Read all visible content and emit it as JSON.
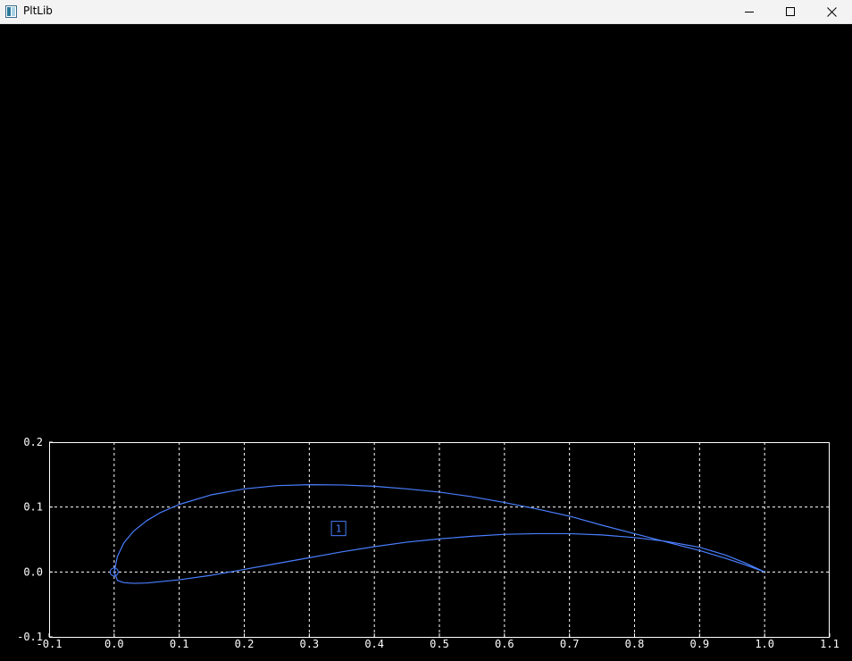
{
  "window": {
    "title": "PltLib",
    "icons": {
      "app": "plot-window-icon",
      "minimize": "minimize-icon",
      "maximize": "maximize-icon",
      "close": "close-icon"
    }
  },
  "colors": {
    "background": "#000000",
    "titlebar": "#f3f3f3",
    "axes": "#ffffff",
    "grid": "#ffffff",
    "curve": "#4a7fff",
    "marker": "#4a7fff"
  },
  "chart_data": {
    "type": "line",
    "title": "",
    "xlabel": "",
    "ylabel": "",
    "xlim": [
      -0.1,
      1.1
    ],
    "ylim": [
      -0.1,
      0.2
    ],
    "xticks": [
      -0.1,
      0.0,
      0.1,
      0.2,
      0.3,
      0.4,
      0.5,
      0.6,
      0.7,
      0.8,
      0.9,
      1.0,
      1.1
    ],
    "yticks": [
      -0.1,
      0.0,
      0.1,
      0.2
    ],
    "xtick_labels": [
      "-0.1",
      "0.0",
      "0.1",
      "0.2",
      "0.3",
      "0.4",
      "0.5",
      "0.6",
      "0.7",
      "0.8",
      "0.9",
      "1.0",
      "1.1"
    ],
    "ytick_labels": [
      "-0.1",
      "0.0",
      "0.1",
      "0.2"
    ],
    "grid": true,
    "grid_style": "dashed",
    "series": [
      {
        "points": [
          [
            1.0,
            0.0
          ],
          [
            0.97,
            0.011
          ],
          [
            0.94,
            0.021
          ],
          [
            0.9,
            0.033
          ],
          [
            0.85,
            0.046
          ],
          [
            0.8,
            0.059
          ],
          [
            0.75,
            0.072
          ],
          [
            0.7,
            0.086
          ],
          [
            0.65,
            0.097
          ],
          [
            0.6,
            0.107
          ],
          [
            0.55,
            0.116
          ],
          [
            0.5,
            0.123
          ],
          [
            0.45,
            0.128
          ],
          [
            0.4,
            0.132
          ],
          [
            0.35,
            0.134
          ],
          [
            0.3,
            0.1345
          ],
          [
            0.25,
            0.133
          ],
          [
            0.2,
            0.128
          ],
          [
            0.15,
            0.119
          ],
          [
            0.1,
            0.104
          ],
          [
            0.07,
            0.091
          ],
          [
            0.05,
            0.079
          ],
          [
            0.03,
            0.063
          ],
          [
            0.015,
            0.045
          ],
          [
            0.005,
            0.024
          ],
          [
            0.0,
            0.0
          ],
          [
            0.005,
            -0.013
          ],
          [
            0.015,
            -0.0165
          ],
          [
            0.03,
            -0.0175
          ],
          [
            0.05,
            -0.017
          ],
          [
            0.1,
            -0.012
          ],
          [
            0.15,
            -0.005
          ],
          [
            0.2,
            0.004
          ],
          [
            0.25,
            0.013
          ],
          [
            0.3,
            0.022
          ],
          [
            0.35,
            0.031
          ],
          [
            0.4,
            0.039
          ],
          [
            0.45,
            0.046
          ],
          [
            0.5,
            0.051
          ],
          [
            0.55,
            0.055
          ],
          [
            0.6,
            0.058
          ],
          [
            0.65,
            0.059
          ],
          [
            0.7,
            0.059
          ],
          [
            0.75,
            0.057
          ],
          [
            0.8,
            0.053
          ],
          [
            0.85,
            0.047
          ],
          [
            0.9,
            0.038
          ],
          [
            0.94,
            0.026
          ],
          [
            0.97,
            0.014
          ],
          [
            1.0,
            0.0
          ]
        ]
      }
    ],
    "markers": [
      {
        "shape": "circle",
        "x": 0.0,
        "y": 0.0
      },
      {
        "shape": "square",
        "x": 0.345,
        "y": 0.067
      }
    ],
    "annotations": [
      {
        "text": "1",
        "x": 0.345,
        "y": 0.067
      }
    ]
  }
}
